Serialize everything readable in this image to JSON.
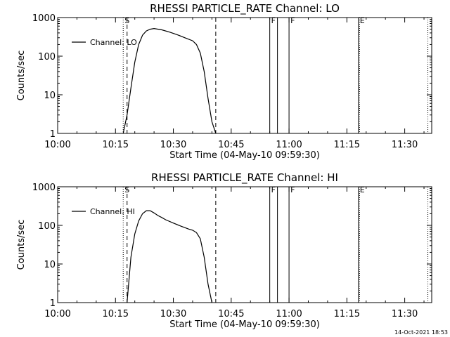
{
  "footer": {
    "timestamp": "14-Oct-2021 18:53"
  },
  "chart_data": [
    {
      "type": "line",
      "title": "RHESSI PARTICLE_RATE Channel: LO",
      "xlabel": "Start Time (04-May-10 09:59:30)",
      "ylabel": "Counts/sec",
      "y_scale": "log",
      "ylim": [
        1,
        1000
      ],
      "xlim": [
        "10:00",
        "11:37"
      ],
      "x_ticks": [
        "10:00",
        "10:15",
        "10:30",
        "10:45",
        "11:00",
        "11:15",
        "11:30"
      ],
      "y_ticks": [
        "1",
        "10",
        "100",
        "1000"
      ],
      "legend": {
        "label": "Channel: LO",
        "position": "top-left"
      },
      "series": [
        {
          "name": "Channel: LO",
          "x": [
            "10:17",
            "10:18",
            "10:19",
            "10:20",
            "10:21",
            "10:22",
            "10:23",
            "10:24",
            "10:25",
            "10:27",
            "10:29",
            "10:31",
            "10:33",
            "10:35",
            "10:36",
            "10:37",
            "10:38",
            "10:39",
            "10:40",
            "10:41"
          ],
          "y": [
            1,
            3,
            15,
            70,
            200,
            350,
            450,
            500,
            520,
            480,
            420,
            360,
            300,
            250,
            200,
            120,
            40,
            8,
            2,
            1
          ]
        }
      ],
      "markers": [
        {
          "label": "S",
          "time": "10:17",
          "style": "dotted"
        },
        {
          "label": "",
          "time": "10:18",
          "style": "dashed"
        },
        {
          "label": "",
          "time": "10:41",
          "style": "dashed"
        },
        {
          "label": "F",
          "time": "10:55",
          "style": "solid"
        },
        {
          "label": "",
          "time": "10:57",
          "style": "solid"
        },
        {
          "label": "F",
          "time": "11:00",
          "style": "solid"
        },
        {
          "label": "E",
          "time": "11:18",
          "style": "solid"
        },
        {
          "label": "",
          "time": "11:18.3",
          "style": "dotted"
        },
        {
          "label": "",
          "time": "11:36",
          "style": "dotted"
        }
      ]
    },
    {
      "type": "line",
      "title": "RHESSI PARTICLE_RATE Channel: HI",
      "xlabel": "Start Time (04-May-10 09:59:30)",
      "ylabel": "Counts/sec",
      "y_scale": "log",
      "ylim": [
        1,
        1000
      ],
      "xlim": [
        "10:00",
        "11:37"
      ],
      "x_ticks": [
        "10:00",
        "10:15",
        "10:30",
        "10:45",
        "11:00",
        "11:15",
        "11:30"
      ],
      "y_ticks": [
        "1",
        "10",
        "100",
        "1000"
      ],
      "legend": {
        "label": "Channel: HI",
        "position": "top-left"
      },
      "series": [
        {
          "name": "Channel: HI",
          "x": [
            "10:18",
            "10:19",
            "10:20",
            "10:21",
            "10:22",
            "10:23",
            "10:24",
            "10:25",
            "10:26",
            "10:27",
            "10:28",
            "10:30",
            "10:32",
            "10:34",
            "10:35",
            "10:36",
            "10:37",
            "10:38",
            "10:39",
            "10:40"
          ],
          "y": [
            1,
            15,
            60,
            130,
            200,
            240,
            240,
            210,
            180,
            160,
            140,
            115,
            95,
            80,
            75,
            65,
            45,
            15,
            3,
            1
          ]
        }
      ],
      "markers": [
        {
          "label": "S",
          "time": "10:17",
          "style": "dotted"
        },
        {
          "label": "",
          "time": "10:18",
          "style": "dashed"
        },
        {
          "label": "",
          "time": "10:41",
          "style": "dashed"
        },
        {
          "label": "F",
          "time": "10:55",
          "style": "solid"
        },
        {
          "label": "",
          "time": "10:57",
          "style": "solid"
        },
        {
          "label": "F",
          "time": "11:00",
          "style": "solid"
        },
        {
          "label": "E",
          "time": "11:18",
          "style": "solid"
        },
        {
          "label": "",
          "time": "11:18.3",
          "style": "dotted"
        },
        {
          "label": "",
          "time": "11:36",
          "style": "dotted"
        }
      ]
    }
  ]
}
